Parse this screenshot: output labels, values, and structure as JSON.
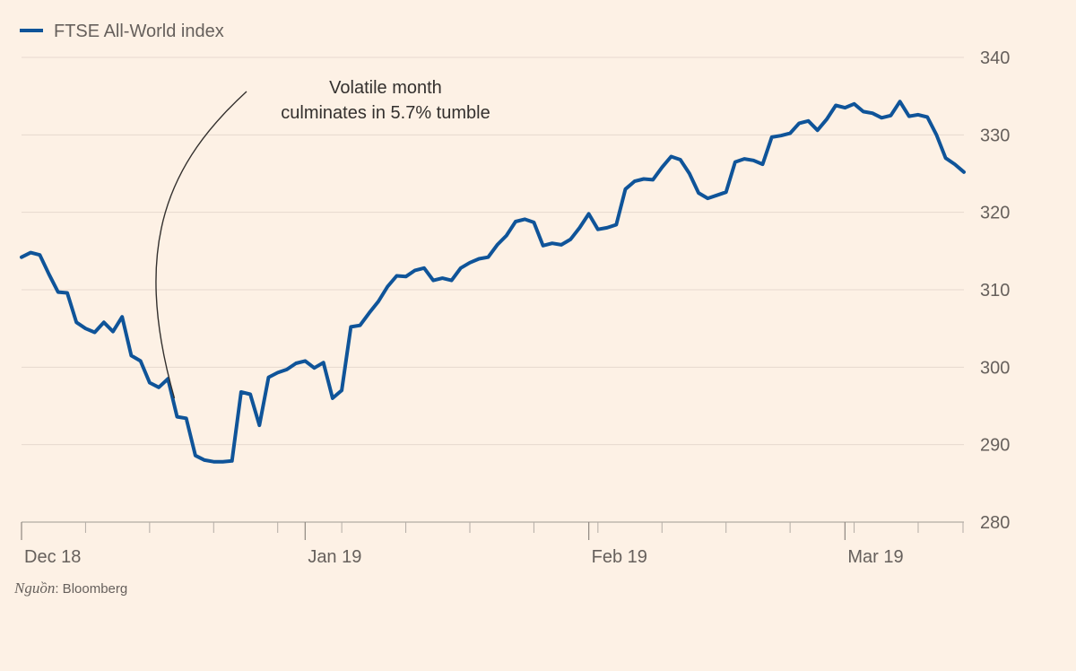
{
  "chart_data": {
    "type": "line",
    "title": "",
    "xlabel": "",
    "ylabel": "",
    "ylim": [
      280,
      340
    ],
    "yticks": [
      280,
      290,
      300,
      310,
      320,
      330,
      340
    ],
    "x_tick_labels": [
      {
        "date": "2018-12-01",
        "label": "Dec 18"
      },
      {
        "date": "2019-01-01",
        "label": "Jan 19"
      },
      {
        "date": "2019-02-01",
        "label": "Feb 19"
      },
      {
        "date": "2019-03-01",
        "label": "Mar 19"
      }
    ],
    "x_minor_ticks": [
      "2018-12-01",
      "2018-12-08",
      "2018-12-15",
      "2018-12-22",
      "2018-12-29",
      "2019-01-05",
      "2019-01-12",
      "2019-01-19",
      "2019-01-26",
      "2019-02-02",
      "2019-02-09",
      "2019-02-16",
      "2019-02-23",
      "2019-03-02",
      "2019-03-09"
    ],
    "xlim": [
      "2018-12-01",
      "2019-03-14"
    ],
    "grid": true,
    "legend_position": "top-left",
    "line_color": "#0f5499",
    "series": [
      {
        "name": "FTSE All-World index",
        "points": [
          [
            "2018-12-01",
            314.2
          ],
          [
            "2018-12-02",
            314.8
          ],
          [
            "2018-12-03",
            314.5
          ],
          [
            "2018-12-04",
            312.0
          ],
          [
            "2018-12-05",
            309.7
          ],
          [
            "2018-12-06",
            309.6
          ],
          [
            "2018-12-07",
            305.8
          ],
          [
            "2018-12-08",
            305.0
          ],
          [
            "2018-12-09",
            304.5
          ],
          [
            "2018-12-10",
            305.8
          ],
          [
            "2018-12-11",
            304.6
          ],
          [
            "2018-12-12",
            306.5
          ],
          [
            "2018-12-13",
            301.5
          ],
          [
            "2018-12-14",
            300.8
          ],
          [
            "2018-12-15",
            298.0
          ],
          [
            "2018-12-16",
            297.4
          ],
          [
            "2018-12-17",
            298.5
          ],
          [
            "2018-12-18",
            293.6
          ],
          [
            "2018-12-19",
            293.4
          ],
          [
            "2018-12-20",
            288.6
          ],
          [
            "2018-12-21",
            288.0
          ],
          [
            "2018-12-22",
            287.8
          ],
          [
            "2018-12-23",
            287.8
          ],
          [
            "2018-12-24",
            287.9
          ],
          [
            "2018-12-25",
            296.8
          ],
          [
            "2018-12-26",
            296.5
          ],
          [
            "2018-12-27",
            292.5
          ],
          [
            "2018-12-28",
            298.7
          ],
          [
            "2018-12-29",
            299.3
          ],
          [
            "2018-12-30",
            299.7
          ],
          [
            "2018-12-31",
            300.5
          ],
          [
            "2019-01-01",
            300.8
          ],
          [
            "2019-01-02",
            299.9
          ],
          [
            "2019-01-03",
            300.6
          ],
          [
            "2019-01-04",
            296.0
          ],
          [
            "2019-01-05",
            297.0
          ],
          [
            "2019-01-06",
            305.2
          ],
          [
            "2019-01-07",
            305.4
          ],
          [
            "2019-01-08",
            307.0
          ],
          [
            "2019-01-09",
            308.5
          ],
          [
            "2019-01-10",
            310.4
          ],
          [
            "2019-01-11",
            311.8
          ],
          [
            "2019-01-12",
            311.7
          ],
          [
            "2019-01-13",
            312.5
          ],
          [
            "2019-01-14",
            312.8
          ],
          [
            "2019-01-15",
            311.2
          ],
          [
            "2019-01-16",
            311.5
          ],
          [
            "2019-01-17",
            311.2
          ],
          [
            "2019-01-18",
            312.8
          ],
          [
            "2019-01-19",
            313.5
          ],
          [
            "2019-01-20",
            314.0
          ],
          [
            "2019-01-21",
            314.2
          ],
          [
            "2019-01-22",
            315.8
          ],
          [
            "2019-01-23",
            317.0
          ],
          [
            "2019-01-24",
            318.8
          ],
          [
            "2019-01-25",
            319.1
          ],
          [
            "2019-01-26",
            318.7
          ],
          [
            "2019-01-27",
            315.7
          ],
          [
            "2019-01-28",
            316.0
          ],
          [
            "2019-01-29",
            315.8
          ],
          [
            "2019-01-30",
            316.5
          ],
          [
            "2019-01-31",
            318.0
          ],
          [
            "2019-02-01",
            319.8
          ],
          [
            "2019-02-02",
            317.8
          ],
          [
            "2019-02-03",
            318.0
          ],
          [
            "2019-02-04",
            318.4
          ],
          [
            "2019-02-05",
            323.0
          ],
          [
            "2019-02-06",
            324.0
          ],
          [
            "2019-02-07",
            324.3
          ],
          [
            "2019-02-08",
            324.2
          ],
          [
            "2019-02-09",
            325.8
          ],
          [
            "2019-02-10",
            327.2
          ],
          [
            "2019-02-11",
            326.8
          ],
          [
            "2019-02-12",
            325.0
          ],
          [
            "2019-02-13",
            322.5
          ],
          [
            "2019-02-14",
            321.8
          ],
          [
            "2019-02-15",
            322.2
          ],
          [
            "2019-02-16",
            322.6
          ],
          [
            "2019-02-17",
            326.5
          ],
          [
            "2019-02-18",
            326.9
          ],
          [
            "2019-02-19",
            326.7
          ],
          [
            "2019-02-20",
            326.2
          ],
          [
            "2019-02-21",
            329.7
          ],
          [
            "2019-02-22",
            329.9
          ],
          [
            "2019-02-23",
            330.2
          ],
          [
            "2019-02-24",
            331.5
          ],
          [
            "2019-02-25",
            331.8
          ],
          [
            "2019-02-26",
            330.6
          ],
          [
            "2019-02-27",
            332.0
          ],
          [
            "2019-02-28",
            333.8
          ],
          [
            "2019-03-01",
            333.5
          ],
          [
            "2019-03-02",
            334.0
          ],
          [
            "2019-03-03",
            333.0
          ],
          [
            "2019-03-04",
            332.8
          ],
          [
            "2019-03-05",
            332.2
          ],
          [
            "2019-03-06",
            332.5
          ],
          [
            "2019-03-07",
            334.3
          ],
          [
            "2019-03-08",
            332.4
          ],
          [
            "2019-03-09",
            332.6
          ],
          [
            "2019-03-10",
            332.3
          ],
          [
            "2019-03-11",
            330.0
          ],
          [
            "2019-03-12",
            327.0
          ],
          [
            "2019-03-13",
            326.2
          ],
          [
            "2019-03-14",
            325.2
          ]
        ]
      }
    ],
    "annotations": [
      {
        "lines": [
          "Volatile month",
          "culminates in 5.7% tumble"
        ],
        "points_to": [
          "2018-12-18",
          296.0
        ]
      }
    ]
  },
  "source": {
    "prefix": "Nguồn",
    "separator": ":",
    "text": " Bloomberg"
  }
}
